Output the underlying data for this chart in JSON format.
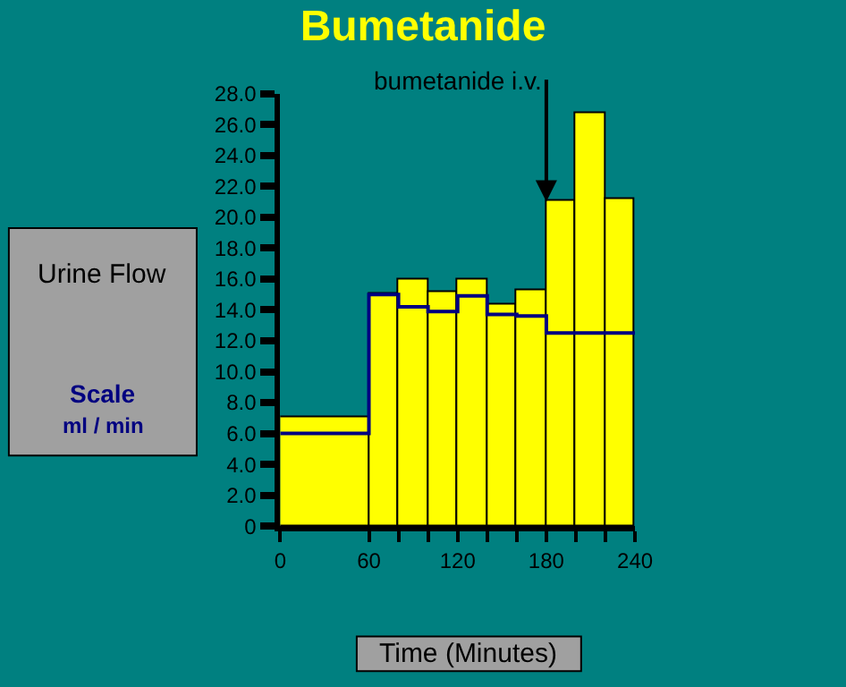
{
  "chart_data": {
    "type": "histogram",
    "title": "Bumetanide",
    "xlabel": "Time (Minutes)",
    "ylabel": "Urine Flow",
    "bins": [
      0,
      60,
      80,
      100,
      120,
      140,
      160,
      180,
      200,
      220,
      240
    ],
    "series": [
      {
        "color": "#ffff00",
        "values": [
          7.0,
          15.0,
          16.0,
          15.2,
          16.0,
          14.3,
          15.3,
          21.0,
          26.7,
          21.2
        ]
      },
      {
        "type": "step",
        "color": "#000080",
        "x": [
          0,
          60,
          80,
          100,
          120,
          140,
          160,
          180,
          200,
          220,
          240
        ],
        "values": [
          6.0,
          15.0,
          14.2,
          13.9,
          14.9,
          13.7,
          13.6,
          12.5,
          12.5,
          12.5,
          12.5
        ]
      }
    ],
    "annotations": [
      {
        "text": "bumetanide i.v.",
        "x": 180,
        "y": 21.0
      },
      "Scale",
      "ml / min"
    ],
    "xlim": [
      0,
      240
    ],
    "ylim": [
      0,
      28
    ],
    "xticks": [
      0,
      60,
      {
        "value": 80,
        "label": null
      },
      {
        "value": 100,
        "label": null
      },
      120,
      {
        "value": 140,
        "label": null
      },
      {
        "value": 160,
        "label": null
      },
      180,
      {
        "value": 200,
        "label": null
      },
      {
        "value": 220,
        "label": null
      },
      240
    ],
    "yticks": [
      0,
      {
        "value": 2,
        "label": "2.0"
      },
      {
        "value": 4,
        "label": "4.0"
      },
      {
        "value": 6,
        "label": "6.0"
      },
      {
        "value": 8,
        "label": "8.0"
      },
      {
        "value": 10,
        "label": "10.0"
      },
      {
        "value": 12,
        "label": "12.0"
      },
      {
        "value": 14,
        "label": "14.0"
      },
      {
        "value": 16,
        "label": "16.0"
      },
      {
        "value": 18,
        "label": "18.0"
      },
      {
        "value": 20,
        "label": "20.0"
      },
      {
        "value": 22,
        "label": "22.0"
      },
      {
        "value": 24,
        "label": "24.0"
      },
      {
        "value": 26,
        "label": "26.0"
      },
      {
        "value": 28,
        "label": "28.0"
      }
    ],
    "grid": false
  }
}
